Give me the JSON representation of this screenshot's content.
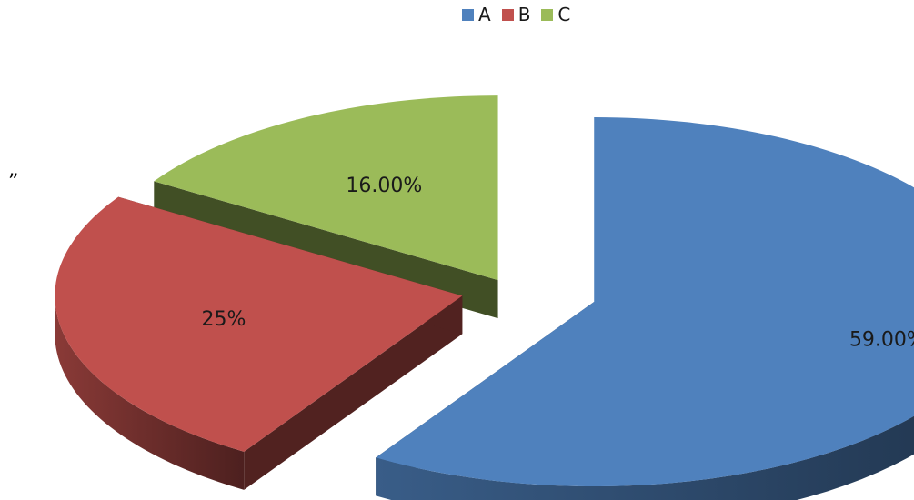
{
  "stray_mark": "”",
  "chart_data": {
    "type": "pie",
    "style": "3d-exploded",
    "categories": [
      "A",
      "B",
      "C"
    ],
    "values": [
      59,
      25,
      16
    ],
    "labels": [
      "59.00%",
      "25%",
      "16.00%"
    ],
    "colors": [
      "#4f81bd",
      "#c0504d",
      "#9bbb59"
    ],
    "legend_position": "top",
    "title": ""
  }
}
